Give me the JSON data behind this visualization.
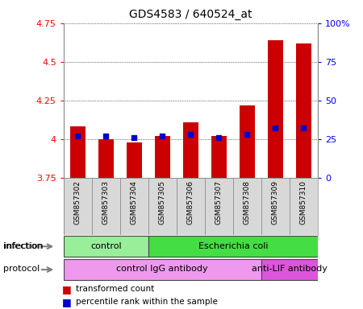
{
  "title": "GDS4583 / 640524_at",
  "samples": [
    "GSM857302",
    "GSM857303",
    "GSM857304",
    "GSM857305",
    "GSM857306",
    "GSM857307",
    "GSM857308",
    "GSM857309",
    "GSM857310"
  ],
  "transformed_count": [
    4.08,
    4.0,
    3.98,
    4.02,
    4.11,
    4.02,
    4.22,
    4.64,
    4.62
  ],
  "percentile_rank": [
    27,
    27,
    26,
    27,
    28,
    26,
    28,
    32,
    32
  ],
  "ylim": [
    3.75,
    4.75
  ],
  "yticks": [
    3.75,
    4.0,
    4.25,
    4.5,
    4.75
  ],
  "ytick_labels": [
    "3.75",
    "4",
    "4.25",
    "4.5",
    "4.75"
  ],
  "y2lim": [
    0,
    100
  ],
  "y2ticks": [
    0,
    25,
    50,
    75,
    100
  ],
  "y2tick_labels": [
    "0",
    "25",
    "50",
    "75",
    "100%"
  ],
  "bar_color": "#cc0000",
  "dot_color": "#0000cc",
  "bar_bottom": 3.75,
  "infection_groups": [
    {
      "label": "control",
      "start": 0,
      "end": 3,
      "color": "#99ee99"
    },
    {
      "label": "Escherichia coli",
      "start": 3,
      "end": 9,
      "color": "#44dd44"
    }
  ],
  "protocol_groups": [
    {
      "label": "control IgG antibody",
      "start": 0,
      "end": 7,
      "color": "#ee99ee"
    },
    {
      "label": "anti-LIF antibody",
      "start": 7,
      "end": 9,
      "color": "#dd55dd"
    }
  ],
  "infection_label": "infection",
  "protocol_label": "protocol",
  "legend_red_label": "transformed count",
  "legend_blue_label": "percentile rank within the sample",
  "bg_color": "#d8d8d8",
  "plot_bg": "#ffffff",
  "title_fontsize": 10,
  "tick_fontsize": 8,
  "label_fontsize": 8,
  "group_fontsize": 8
}
